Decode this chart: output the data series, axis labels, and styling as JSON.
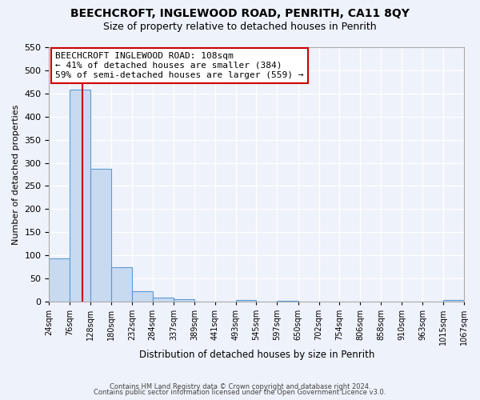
{
  "title": "BEECHCROFT, INGLEWOOD ROAD, PENRITH, CA11 8QY",
  "subtitle": "Size of property relative to detached houses in Penrith",
  "xlabel": "Distribution of detached houses by size in Penrith",
  "ylabel": "Number of detached properties",
  "bin_edges": [
    24,
    76,
    128,
    180,
    232,
    284,
    337,
    389,
    441,
    493,
    545,
    597,
    650,
    702,
    754,
    806,
    858,
    910,
    963,
    1015,
    1067
  ],
  "bar_heights": [
    93,
    459,
    287,
    75,
    22,
    8,
    5,
    0,
    0,
    3,
    0,
    2,
    0,
    0,
    0,
    0,
    0,
    0,
    0,
    3
  ],
  "bar_color": "#c8daf0",
  "bar_edge_color": "#5b9bd5",
  "vline_x": 108,
  "vline_color": "#cc0000",
  "annotation_title": "BEECHCROFT INGLEWOOD ROAD: 108sqm",
  "annotation_line1": "← 41% of detached houses are smaller (384)",
  "annotation_line2": "59% of semi-detached houses are larger (559) →",
  "annotation_box_color": "#ffffff",
  "annotation_box_edge": "#cc0000",
  "ylim": [
    0,
    550
  ],
  "yticks": [
    0,
    50,
    100,
    150,
    200,
    250,
    300,
    350,
    400,
    450,
    500,
    550
  ],
  "footer1": "Contains HM Land Registry data © Crown copyright and database right 2024.",
  "footer2": "Contains public sector information licensed under the Open Government Licence v3.0.",
  "bg_color": "#eef2fb",
  "grid_color": "#ffffff",
  "title_fontsize": 10,
  "subtitle_fontsize": 9,
  "tick_label_fontsize": 7,
  "annotation_fontsize": 8,
  "ylabel_fontsize": 8,
  "xlabel_fontsize": 8.5
}
